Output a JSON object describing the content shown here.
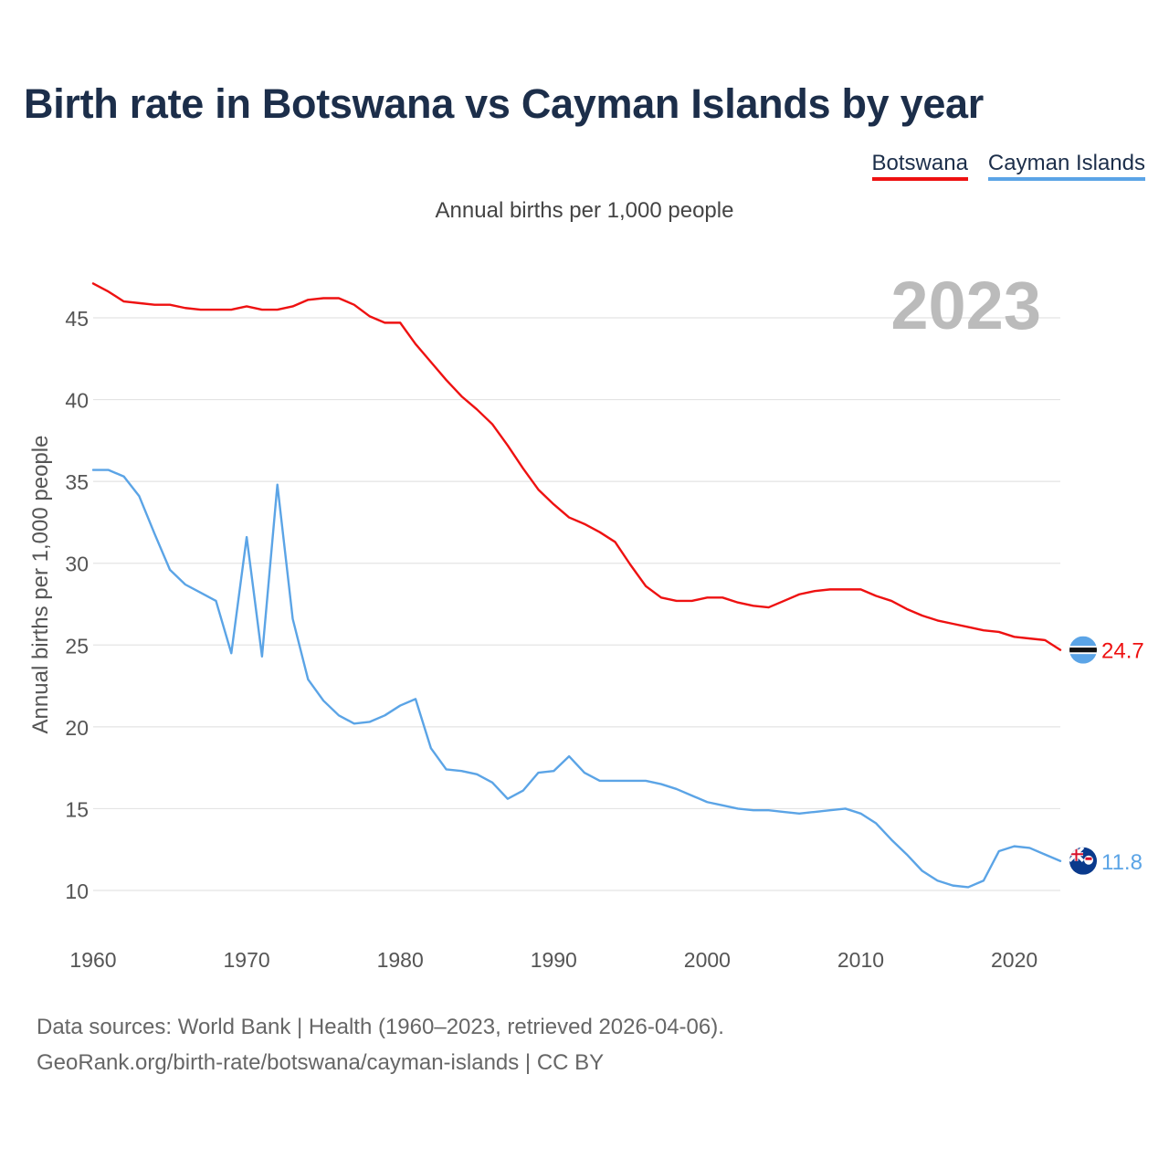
{
  "header": {
    "title": "Birth rate in Botswana vs Cayman Islands by year",
    "subtitle": "Annual births per 1,000 people"
  },
  "legend": [
    {
      "label": "Botswana",
      "color": "#ee1111"
    },
    {
      "label": "Cayman Islands",
      "color": "#5ba4e6"
    }
  ],
  "footer": {
    "line1": "Data sources: World Bank | Health (1960–2023, retrieved 2026-04-06).",
    "line2": "GeoRank.org/birth-rate/botswana/cayman-islands | CC BY"
  },
  "chart_data": {
    "type": "line",
    "title": "Birth rate in Botswana vs Cayman Islands by year",
    "ylabel": "Annual births per 1,000 people",
    "xlabel": "",
    "year_label": "2023",
    "xlim": [
      1960,
      2023
    ],
    "ylim": [
      10,
      45
    ],
    "x_ticks": [
      1960,
      1970,
      1980,
      1990,
      2000,
      2010,
      2020
    ],
    "y_ticks": [
      10,
      15,
      20,
      25,
      30,
      35,
      40,
      45
    ],
    "grid": true,
    "x": [
      1960,
      1961,
      1962,
      1963,
      1964,
      1965,
      1966,
      1967,
      1968,
      1969,
      1970,
      1971,
      1972,
      1973,
      1974,
      1975,
      1976,
      1977,
      1978,
      1979,
      1980,
      1981,
      1982,
      1983,
      1984,
      1985,
      1986,
      1987,
      1988,
      1989,
      1990,
      1991,
      1992,
      1993,
      1994,
      1995,
      1996,
      1997,
      1998,
      1999,
      2000,
      2001,
      2002,
      2003,
      2004,
      2005,
      2006,
      2007,
      2008,
      2009,
      2010,
      2011,
      2012,
      2013,
      2014,
      2015,
      2016,
      2017,
      2018,
      2019,
      2020,
      2021,
      2022,
      2023
    ],
    "series": [
      {
        "name": "Botswana",
        "color": "#ee1111",
        "end_label": "24.7",
        "values": [
          47.1,
          46.6,
          46.0,
          45.9,
          45.8,
          45.8,
          45.6,
          45.5,
          45.5,
          45.5,
          45.7,
          45.5,
          45.5,
          45.7,
          46.1,
          46.2,
          46.2,
          45.8,
          45.1,
          44.7,
          44.7,
          43.4,
          42.3,
          41.2,
          40.2,
          39.4,
          38.5,
          37.2,
          35.8,
          34.5,
          33.6,
          32.8,
          32.4,
          31.9,
          31.3,
          29.9,
          28.6,
          27.9,
          27.7,
          27.7,
          27.9,
          27.9,
          27.6,
          27.4,
          27.3,
          27.7,
          28.1,
          28.3,
          28.4,
          28.4,
          28.4,
          28.0,
          27.7,
          27.2,
          26.8,
          26.5,
          26.3,
          26.1,
          25.9,
          25.8,
          25.5,
          25.4,
          25.3,
          24.7
        ]
      },
      {
        "name": "Cayman Islands",
        "color": "#5ba4e6",
        "end_label": "11.8",
        "values": [
          35.7,
          35.7,
          35.3,
          34.1,
          31.8,
          29.6,
          28.7,
          28.2,
          27.7,
          24.5,
          31.6,
          24.3,
          34.8,
          26.6,
          22.9,
          21.6,
          20.7,
          20.2,
          20.3,
          20.7,
          21.3,
          21.7,
          18.7,
          17.4,
          17.3,
          17.1,
          16.6,
          15.6,
          16.1,
          17.2,
          17.3,
          18.2,
          17.2,
          16.7,
          16.7,
          16.7,
          16.7,
          16.5,
          16.2,
          15.8,
          15.4,
          15.2,
          15.0,
          14.9,
          14.9,
          14.8,
          14.7,
          14.8,
          14.9,
          15.0,
          14.7,
          14.1,
          13.1,
          12.2,
          11.2,
          10.6,
          10.3,
          10.2,
          10.6,
          12.4,
          12.7,
          12.6,
          12.2,
          11.8
        ]
      }
    ]
  }
}
